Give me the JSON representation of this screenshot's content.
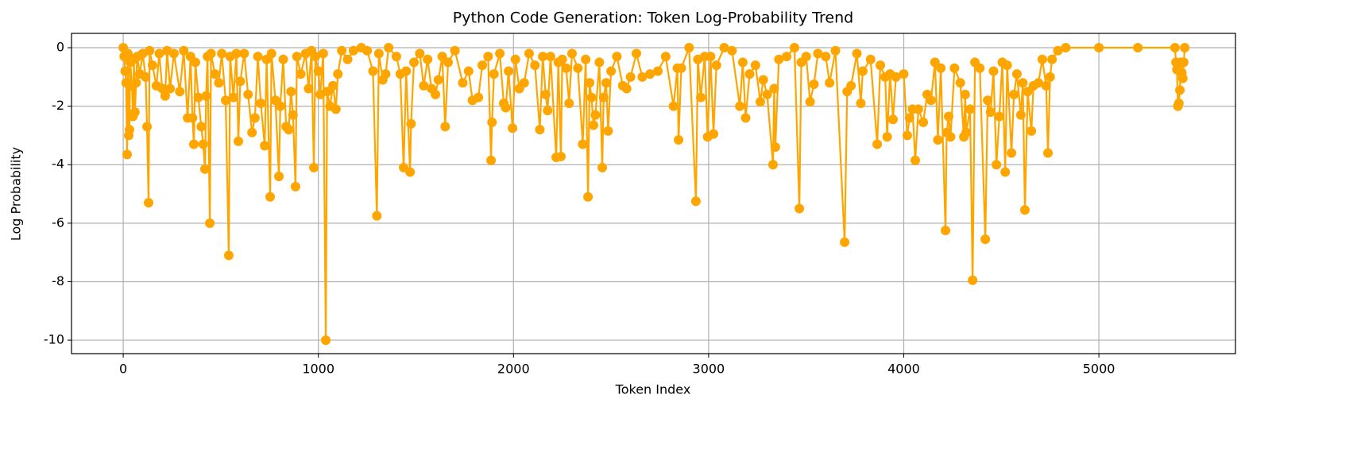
{
  "chart_data": {
    "type": "line",
    "title": "Python Code Generation: Token Log-Probability Trend",
    "xlabel": "Token Index",
    "ylabel": "Log Probability",
    "x": [
      0,
      5,
      10,
      15,
      20,
      24,
      28,
      32,
      36,
      45,
      50,
      55,
      60,
      66,
      72,
      85,
      100,
      115,
      122,
      130,
      135,
      150,
      170,
      185,
      200,
      215,
      225,
      240,
      260,
      290,
      310,
      330,
      345,
      355,
      362,
      370,
      385,
      400,
      410,
      419,
      425,
      432,
      444,
      450,
      470,
      490,
      505,
      525,
      541,
      548,
      565,
      580,
      590,
      600,
      620,
      640,
      660,
      675,
      690,
      705,
      725,
      735,
      753,
      760,
      780,
      798,
      805,
      820,
      835,
      848,
      860,
      870,
      883,
      890,
      910,
      935,
      950,
      965,
      977,
      985,
      1000,
      1010,
      1025,
      1038,
      1045,
      1060,
      1075,
      1090,
      1100,
      1120,
      1150,
      1180,
      1220,
      1250,
      1280,
      1300,
      1310,
      1330,
      1345,
      1360,
      1400,
      1420,
      1437,
      1450,
      1470,
      1475,
      1490,
      1520,
      1540,
      1560,
      1580,
      1600,
      1615,
      1635,
      1650,
      1665,
      1700,
      1740,
      1770,
      1790,
      1820,
      1840,
      1870,
      1885,
      1890,
      1900,
      1930,
      1950,
      1960,
      1975,
      1995,
      2010,
      2030,
      2055,
      2080,
      2110,
      2135,
      2150,
      2165,
      2175,
      2190,
      2219,
      2230,
      2243,
      2250,
      2270,
      2285,
      2300,
      2330,
      2355,
      2370,
      2382,
      2390,
      2400,
      2410,
      2420,
      2440,
      2455,
      2462,
      2475,
      2485,
      2500,
      2530,
      2560,
      2580,
      2600,
      2630,
      2660,
      2700,
      2740,
      2780,
      2820,
      2840,
      2846,
      2860,
      2900,
      2935,
      2945,
      2960,
      2980,
      2995,
      3010,
      3025,
      3040,
      3080,
      3120,
      3160,
      3175,
      3190,
      3210,
      3240,
      3265,
      3280,
      3300,
      3330,
      3336,
      3342,
      3360,
      3400,
      3440,
      3465,
      3475,
      3500,
      3520,
      3540,
      3560,
      3600,
      3620,
      3650,
      3697,
      3710,
      3730,
      3760,
      3780,
      3790,
      3830,
      3864,
      3880,
      3905,
      3915,
      3930,
      3945,
      3960,
      4000,
      4018,
      4030,
      4045,
      4059,
      4075,
      4100,
      4120,
      4140,
      4160,
      4175,
      4190,
      4214,
      4220,
      4230,
      4240,
      4260,
      4290,
      4308,
      4315,
      4320,
      4340,
      4353,
      4365,
      4390,
      4418,
      4430,
      4445,
      4460,
      4475,
      4490,
      4505,
      4520,
      4530,
      4552,
      4565,
      4580,
      4600,
      4610,
      4621,
      4635,
      4654,
      4665,
      4690,
      4710,
      4730,
      4739,
      4750,
      4760,
      4790,
      4830,
      5000,
      5200,
      5390,
      5395,
      5400,
      5405,
      5410,
      5415,
      5420,
      5425,
      5430,
      5435,
      5440
    ],
    "series": [
      {
        "color": "#ffa500",
        "values": [
          0,
          -0.3,
          -0.8,
          -1.2,
          -3.65,
          -0.2,
          -3.0,
          -2.8,
          -0.5,
          -1.3,
          -2.35,
          -0.4,
          -2.2,
          -1.2,
          -0.3,
          -0.9,
          -0.2,
          -1.0,
          -2.7,
          -5.3,
          -0.1,
          -0.6,
          -1.3,
          -0.2,
          -1.4,
          -1.65,
          -0.1,
          -1.4,
          -0.2,
          -1.5,
          -0.1,
          -2.4,
          -0.3,
          -2.4,
          -3.3,
          -0.5,
          -1.7,
          -2.7,
          -3.3,
          -4.15,
          -1.65,
          -0.3,
          -6.0,
          -0.2,
          -0.9,
          -1.2,
          -0.2,
          -1.8,
          -7.1,
          -0.3,
          -1.7,
          -0.2,
          -3.2,
          -1.15,
          -0.2,
          -1.6,
          -2.9,
          -2.4,
          -0.3,
          -1.9,
          -3.35,
          -0.4,
          -5.1,
          -0.2,
          -1.8,
          -4.4,
          -2.0,
          -0.4,
          -2.7,
          -2.8,
          -1.5,
          -2.3,
          -4.75,
          -0.3,
          -0.9,
          -0.2,
          -1.4,
          -0.1,
          -4.1,
          -0.3,
          -0.8,
          -1.6,
          -0.2,
          -10,
          -1.5,
          -2.0,
          -1.3,
          -2.1,
          -0.9,
          -0.1,
          -0.4,
          -0.1,
          0,
          -0.1,
          -0.8,
          -5.75,
          -0.2,
          -1.1,
          -0.9,
          0,
          -0.3,
          -0.9,
          -4.1,
          -0.8,
          -4.25,
          -2.6,
          -0.5,
          -0.2,
          -1.3,
          -0.4,
          -1.4,
          -1.6,
          -1.1,
          -0.3,
          -2.7,
          -0.5,
          -0.1,
          -1.2,
          -0.8,
          -1.8,
          -1.7,
          -0.6,
          -0.3,
          -3.85,
          -2.55,
          -0.9,
          -0.2,
          -1.9,
          -2.05,
          -0.8,
          -2.75,
          -0.4,
          -1.4,
          -1.2,
          -0.2,
          -0.6,
          -2.8,
          -0.3,
          -1.6,
          -2.15,
          -0.3,
          -3.75,
          -0.5,
          -3.72,
          -0.4,
          -0.7,
          -1.9,
          -0.2,
          -0.7,
          -3.3,
          -0.4,
          -5.1,
          -1.2,
          -1.7,
          -2.65,
          -2.3,
          -0.5,
          -4.1,
          -1.7,
          -1.2,
          -2.85,
          -0.8,
          -0.3,
          -1.3,
          -1.4,
          -1.0,
          -0.2,
          -1.0,
          -0.9,
          -0.8,
          -0.3,
          -2.0,
          -0.7,
          -3.15,
          -0.7,
          0,
          -5.25,
          -0.4,
          -1.7,
          -0.3,
          -3.05,
          -0.3,
          -2.95,
          -0.6,
          0,
          -0.1,
          -2.0,
          -0.5,
          -2.4,
          -0.9,
          -0.6,
          -1.85,
          -1.1,
          -1.6,
          -4.0,
          -1.4,
          -3.4,
          -0.4,
          -0.3,
          0,
          -5.5,
          -0.5,
          -0.3,
          -1.85,
          -1.25,
          -0.2,
          -0.3,
          -1.2,
          -0.1,
          -6.65,
          -1.5,
          -1.3,
          -0.2,
          -1.9,
          -0.8,
          -0.4,
          -3.3,
          -0.6,
          -1.0,
          -3.05,
          -0.9,
          -2.45,
          -1.0,
          -0.9,
          -3.0,
          -2.4,
          -2.1,
          -3.85,
          -2.1,
          -2.55,
          -1.6,
          -1.8,
          -0.5,
          -3.15,
          -0.7,
          -6.25,
          -2.9,
          -2.35,
          -3.05,
          -0.7,
          -1.2,
          -3.05,
          -1.6,
          -2.9,
          -2.1,
          -7.95,
          -0.5,
          -0.7,
          -6.55,
          -1.8,
          -2.2,
          -0.8,
          -4.0,
          -2.35,
          -0.5,
          -4.25,
          -0.6,
          -3.6,
          -1.6,
          -0.9,
          -2.3,
          -1.2,
          -5.55,
          -1.5,
          -2.85,
          -1.3,
          -1.2,
          -0.4,
          -1.3,
          -3.6,
          -1.0,
          -0.4,
          -0.1,
          0,
          0,
          0,
          0,
          -0.5,
          -0.75,
          -2.0,
          -1.9,
          -1.45,
          -0.5,
          -0.85,
          -1.05,
          -0.5,
          0
        ]
      }
    ],
    "xlim": [
      -265,
      5700
    ],
    "ylim": [
      -10.46,
      0.49
    ],
    "xticks": [
      0,
      1000,
      2000,
      3000,
      4000,
      5000
    ],
    "yticks": [
      0,
      -2,
      -4,
      -6,
      -8,
      -10
    ],
    "grid": true
  }
}
